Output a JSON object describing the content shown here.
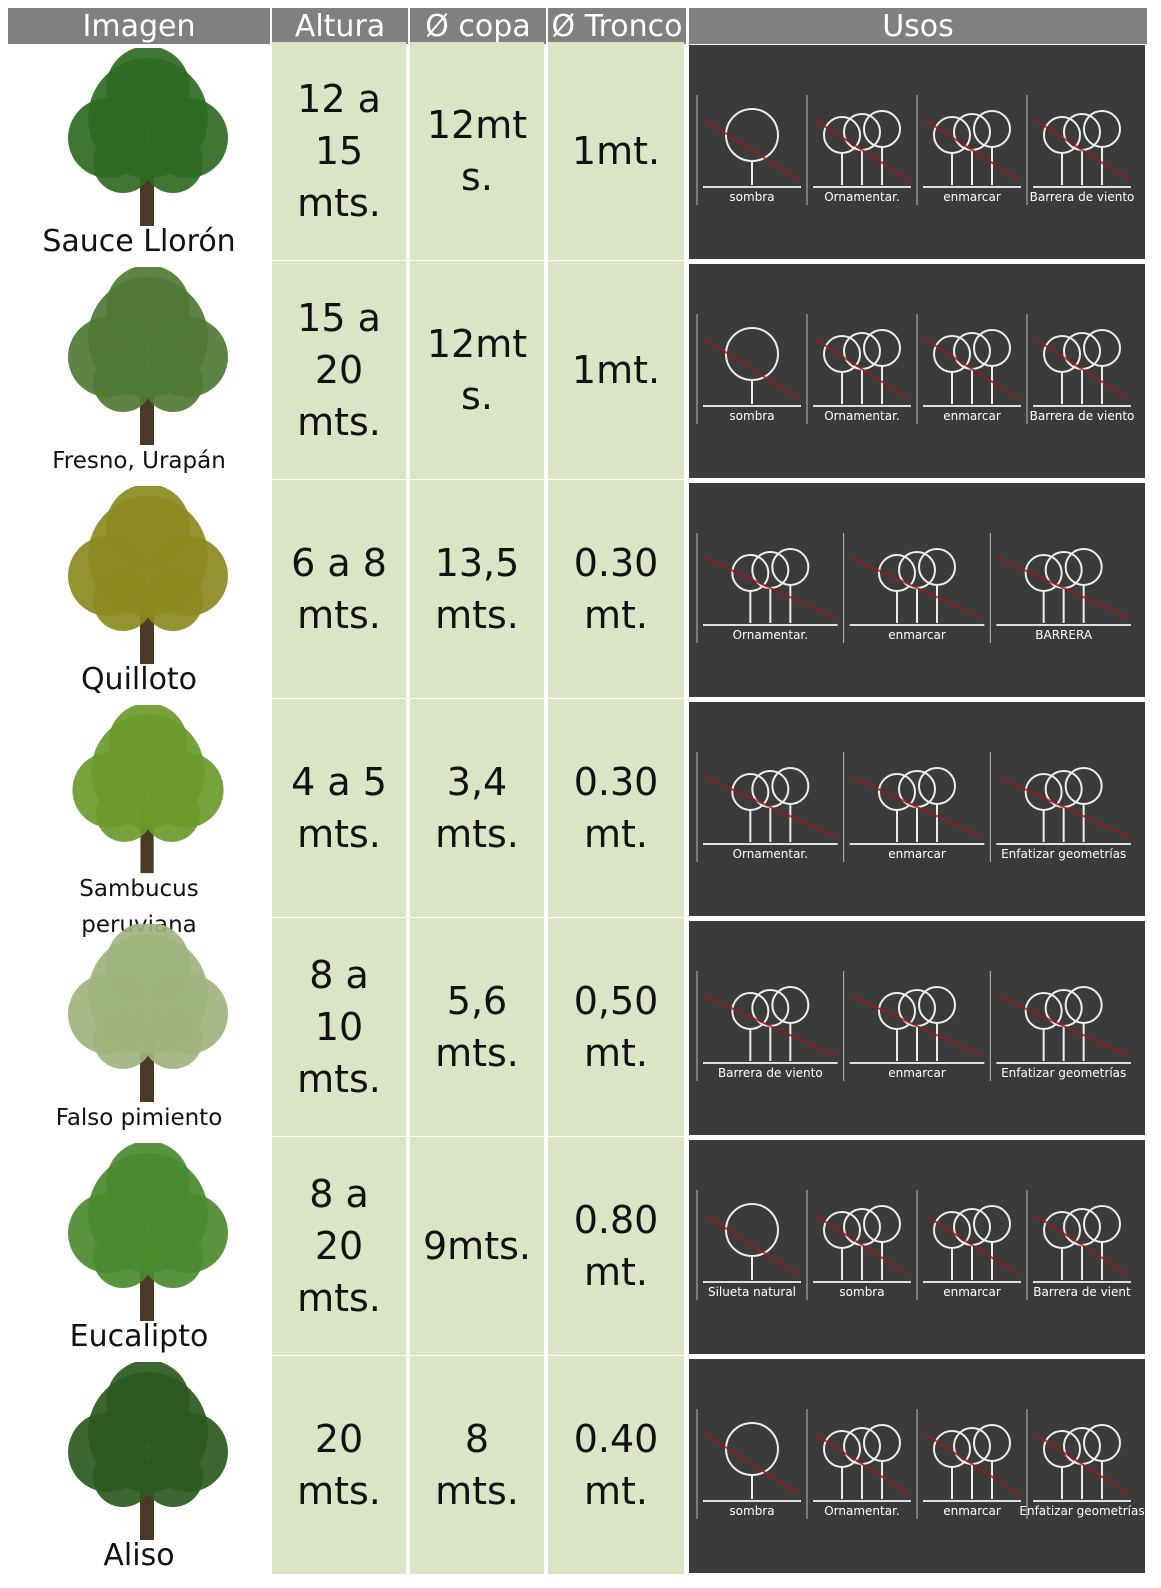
{
  "header": [
    "Imagen",
    "Altura",
    "Ø copa",
    "Ø Tronco",
    "Usos"
  ],
  "rows": [
    {
      "name": [
        "Sauce Llorón"
      ],
      "altura": [
        "12 a",
        "15",
        "mts."
      ],
      "copa": [
        "12mt",
        "s."
      ],
      "tronco": [
        "1mt."
      ],
      "usos": [
        "sombra",
        "Ornamentar.",
        "enmarcar",
        "Barrera de viento"
      ]
    },
    {
      "name": [
        "Fresno, Urapán"
      ],
      "altura": [
        "15 a",
        "20",
        "mts."
      ],
      "copa": [
        "12mt",
        "s."
      ],
      "tronco": [
        "1mt."
      ],
      "usos": [
        "sombra",
        "Ornamentar.",
        "enmarcar",
        "Barrera de viento"
      ]
    },
    {
      "name": [
        "Quilloto"
      ],
      "altura": [
        "6 a 8",
        "mts."
      ],
      "copa": [
        "13,5",
        "mts."
      ],
      "tronco": [
        "0.30",
        "mt."
      ],
      "usos": [
        "Ornamentar.",
        "enmarcar",
        "BARRERA"
      ]
    },
    {
      "name": [
        "Sambucus",
        "peruviana"
      ],
      "altura": [
        "4 a 5",
        "mts."
      ],
      "copa": [
        "3,4",
        "mts."
      ],
      "tronco": [
        "0.30",
        "mt."
      ],
      "usos": [
        "Ornamentar.",
        "enmarcar",
        "Enfatizar geometrías"
      ]
    },
    {
      "name": [
        "Falso pimiento"
      ],
      "altura": [
        "8 a",
        "10",
        "mts."
      ],
      "copa": [
        "5,6",
        "mts."
      ],
      "tronco": [
        "0,50",
        "mt."
      ],
      "usos": [
        "Barrera de viento",
        "enmarcar",
        "Enfatizar geometrías"
      ]
    },
    {
      "name": [
        "Eucalipto"
      ],
      "altura": [
        "8 a",
        "20",
        "mts."
      ],
      "copa": [
        "9mts."
      ],
      "tronco": [
        "0.80",
        "mt."
      ],
      "usos": [
        "Silueta natural",
        "sombra",
        "enmarcar",
        "Barrera de vient"
      ]
    },
    {
      "name": [
        "Aliso"
      ],
      "altura": [
        "20",
        "mts."
      ],
      "copa": [
        "8",
        "mts."
      ],
      "tronco": [
        "0.40",
        "mt."
      ],
      "usos": [
        "sombra",
        "Ornamentar.",
        "enmarcar",
        "Enfatizar geometrías"
      ]
    }
  ]
}
